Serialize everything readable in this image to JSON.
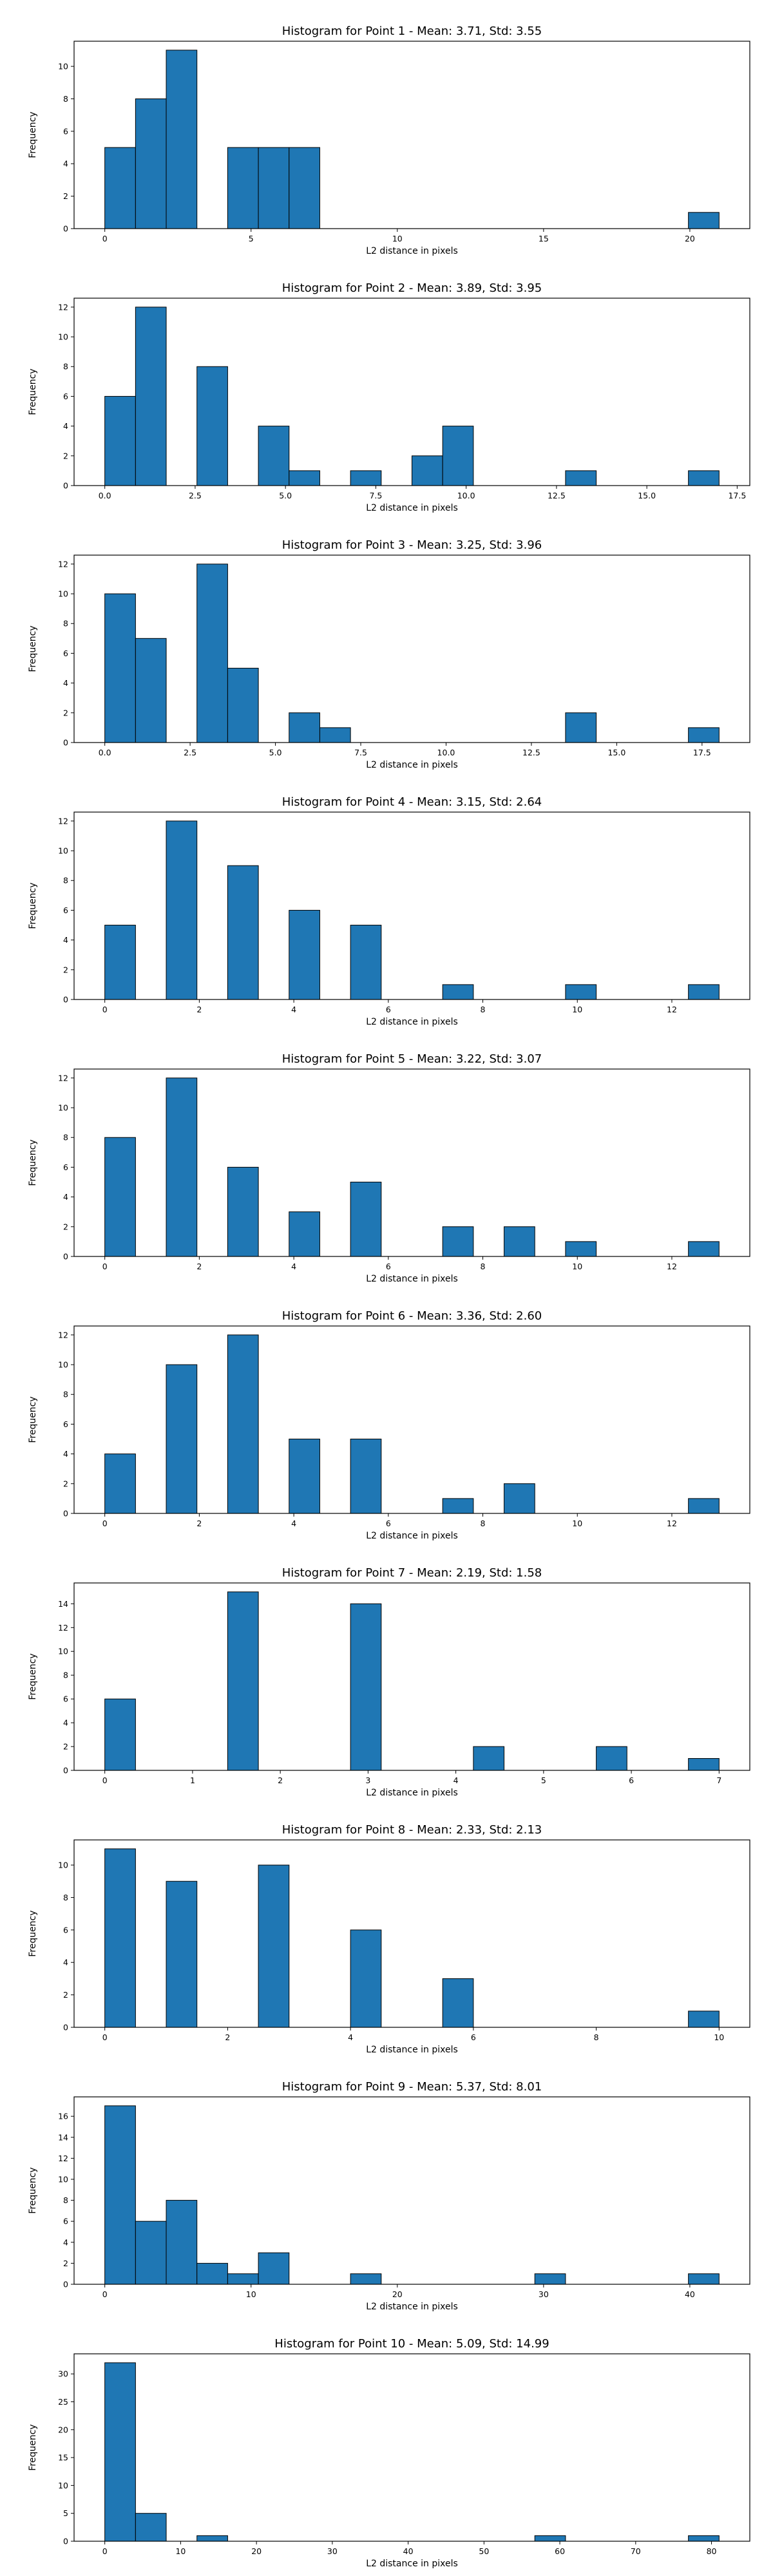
{
  "figure": {
    "bar_color": "#1f77b4",
    "edge_color": "#000000"
  },
  "chart_data": [
    {
      "type": "bar",
      "title": "Histogram for Point 1 - Mean: 3.71, Std: 3.55",
      "xlabel": "L2 distance in pixels",
      "ylabel": "Frequency",
      "xlim": [
        -1.05,
        22.05
      ],
      "ylim": [
        0,
        11.55
      ],
      "xticks": [
        {
          "value": 0,
          "label": "0"
        },
        {
          "value": 5,
          "label": "5"
        },
        {
          "value": 10,
          "label": "10"
        },
        {
          "value": 15,
          "label": "15"
        },
        {
          "value": 20,
          "label": "20"
        }
      ],
      "yticks": [
        {
          "value": 0,
          "label": "0"
        },
        {
          "value": 2,
          "label": "2"
        },
        {
          "value": 4,
          "label": "4"
        },
        {
          "value": 6,
          "label": "6"
        },
        {
          "value": 8,
          "label": "8"
        },
        {
          "value": 10,
          "label": "10"
        }
      ],
      "bins": [
        {
          "x0": 0.0,
          "x1": 1.05,
          "count": 5
        },
        {
          "x0": 1.05,
          "x1": 2.1,
          "count": 8
        },
        {
          "x0": 2.1,
          "x1": 3.15,
          "count": 11
        },
        {
          "x0": 4.2,
          "x1": 5.25,
          "count": 5
        },
        {
          "x0": 5.25,
          "x1": 6.3,
          "count": 5
        },
        {
          "x0": 6.3,
          "x1": 7.35,
          "count": 5
        },
        {
          "x0": 19.95,
          "x1": 21.0,
          "count": 1
        }
      ]
    },
    {
      "type": "bar",
      "title": "Histogram for Point 2 - Mean: 3.89, Std: 3.95",
      "xlabel": "L2 distance in pixels",
      "ylabel": "Frequency",
      "xlim": [
        -0.85,
        17.85
      ],
      "ylim": [
        0,
        12.6
      ],
      "xticks": [
        {
          "value": 0,
          "label": "0.0"
        },
        {
          "value": 2.5,
          "label": "2.5"
        },
        {
          "value": 5,
          "label": "5.0"
        },
        {
          "value": 7.5,
          "label": "7.5"
        },
        {
          "value": 10,
          "label": "10.0"
        },
        {
          "value": 12.5,
          "label": "12.5"
        },
        {
          "value": 15,
          "label": "15.0"
        },
        {
          "value": 17.5,
          "label": "17.5"
        }
      ],
      "yticks": [
        {
          "value": 0,
          "label": "0"
        },
        {
          "value": 2,
          "label": "2"
        },
        {
          "value": 4,
          "label": "4"
        },
        {
          "value": 6,
          "label": "6"
        },
        {
          "value": 8,
          "label": "8"
        },
        {
          "value": 10,
          "label": "10"
        },
        {
          "value": 12,
          "label": "12"
        }
      ],
      "bins": [
        {
          "x0": 0.0,
          "x1": 0.85,
          "count": 6
        },
        {
          "x0": 0.85,
          "x1": 1.7,
          "count": 12
        },
        {
          "x0": 2.55,
          "x1": 3.4,
          "count": 8
        },
        {
          "x0": 4.25,
          "x1": 5.1,
          "count": 4
        },
        {
          "x0": 5.1,
          "x1": 5.95,
          "count": 1
        },
        {
          "x0": 6.8,
          "x1": 7.65,
          "count": 1
        },
        {
          "x0": 8.5,
          "x1": 9.35,
          "count": 2
        },
        {
          "x0": 9.35,
          "x1": 10.2,
          "count": 4
        },
        {
          "x0": 12.75,
          "x1": 13.6,
          "count": 1
        },
        {
          "x0": 16.15,
          "x1": 17.0,
          "count": 1
        }
      ]
    },
    {
      "type": "bar",
      "title": "Histogram for Point 3 - Mean: 3.25, Std: 3.96",
      "xlabel": "L2 distance in pixels",
      "ylabel": "Frequency",
      "xlim": [
        -0.9,
        18.9
      ],
      "ylim": [
        0,
        12.6
      ],
      "xticks": [
        {
          "value": 0,
          "label": "0.0"
        },
        {
          "value": 2.5,
          "label": "2.5"
        },
        {
          "value": 5,
          "label": "5.0"
        },
        {
          "value": 7.5,
          "label": "7.5"
        },
        {
          "value": 10,
          "label": "10.0"
        },
        {
          "value": 12.5,
          "label": "12.5"
        },
        {
          "value": 15,
          "label": "15.0"
        },
        {
          "value": 17.5,
          "label": "17.5"
        }
      ],
      "yticks": [
        {
          "value": 0,
          "label": "0"
        },
        {
          "value": 2,
          "label": "2"
        },
        {
          "value": 4,
          "label": "4"
        },
        {
          "value": 6,
          "label": "6"
        },
        {
          "value": 8,
          "label": "8"
        },
        {
          "value": 10,
          "label": "10"
        },
        {
          "value": 12,
          "label": "12"
        }
      ],
      "bins": [
        {
          "x0": 0.0,
          "x1": 0.9,
          "count": 10
        },
        {
          "x0": 0.9,
          "x1": 1.8,
          "count": 7
        },
        {
          "x0": 2.7,
          "x1": 3.6,
          "count": 12
        },
        {
          "x0": 3.6,
          "x1": 4.5,
          "count": 5
        },
        {
          "x0": 5.4,
          "x1": 6.3,
          "count": 2
        },
        {
          "x0": 6.3,
          "x1": 7.2,
          "count": 1
        },
        {
          "x0": 13.5,
          "x1": 14.4,
          "count": 2
        },
        {
          "x0": 17.1,
          "x1": 18.0,
          "count": 1
        }
      ]
    },
    {
      "type": "bar",
      "title": "Histogram for Point 4 - Mean: 3.15, Std: 2.64",
      "xlabel": "L2 distance in pixels",
      "ylabel": "Frequency",
      "xlim": [
        -0.65,
        13.65
      ],
      "ylim": [
        0,
        12.6
      ],
      "xticks": [
        {
          "value": 0,
          "label": "0"
        },
        {
          "value": 2,
          "label": "2"
        },
        {
          "value": 4,
          "label": "4"
        },
        {
          "value": 6,
          "label": "6"
        },
        {
          "value": 8,
          "label": "8"
        },
        {
          "value": 10,
          "label": "10"
        },
        {
          "value": 12,
          "label": "12"
        }
      ],
      "yticks": [
        {
          "value": 0,
          "label": "0"
        },
        {
          "value": 2,
          "label": "2"
        },
        {
          "value": 4,
          "label": "4"
        },
        {
          "value": 6,
          "label": "6"
        },
        {
          "value": 8,
          "label": "8"
        },
        {
          "value": 10,
          "label": "10"
        },
        {
          "value": 12,
          "label": "12"
        }
      ],
      "bins": [
        {
          "x0": 0.0,
          "x1": 0.65,
          "count": 5
        },
        {
          "x0": 1.3,
          "x1": 1.95,
          "count": 12
        },
        {
          "x0": 2.6,
          "x1": 3.25,
          "count": 9
        },
        {
          "x0": 3.9,
          "x1": 4.55,
          "count": 6
        },
        {
          "x0": 5.2,
          "x1": 5.85,
          "count": 5
        },
        {
          "x0": 7.15,
          "x1": 7.8,
          "count": 1
        },
        {
          "x0": 9.75,
          "x1": 10.4,
          "count": 1
        },
        {
          "x0": 12.35,
          "x1": 13.0,
          "count": 1
        }
      ]
    },
    {
      "type": "bar",
      "title": "Histogram for Point 5 - Mean: 3.22, Std: 3.07",
      "xlabel": "L2 distance in pixels",
      "ylabel": "Frequency",
      "xlim": [
        -0.65,
        13.65
      ],
      "ylim": [
        0,
        12.6
      ],
      "xticks": [
        {
          "value": 0,
          "label": "0"
        },
        {
          "value": 2,
          "label": "2"
        },
        {
          "value": 4,
          "label": "4"
        },
        {
          "value": 6,
          "label": "6"
        },
        {
          "value": 8,
          "label": "8"
        },
        {
          "value": 10,
          "label": "10"
        },
        {
          "value": 12,
          "label": "12"
        }
      ],
      "yticks": [
        {
          "value": 0,
          "label": "0"
        },
        {
          "value": 2,
          "label": "2"
        },
        {
          "value": 4,
          "label": "4"
        },
        {
          "value": 6,
          "label": "6"
        },
        {
          "value": 8,
          "label": "8"
        },
        {
          "value": 10,
          "label": "10"
        },
        {
          "value": 12,
          "label": "12"
        }
      ],
      "bins": [
        {
          "x0": 0.0,
          "x1": 0.65,
          "count": 8
        },
        {
          "x0": 1.3,
          "x1": 1.95,
          "count": 12
        },
        {
          "x0": 2.6,
          "x1": 3.25,
          "count": 6
        },
        {
          "x0": 3.9,
          "x1": 4.55,
          "count": 3
        },
        {
          "x0": 5.2,
          "x1": 5.85,
          "count": 5
        },
        {
          "x0": 7.15,
          "x1": 7.8,
          "count": 2
        },
        {
          "x0": 8.45,
          "x1": 9.1,
          "count": 2
        },
        {
          "x0": 9.75,
          "x1": 10.4,
          "count": 1
        },
        {
          "x0": 12.35,
          "x1": 13.0,
          "count": 1
        }
      ]
    },
    {
      "type": "bar",
      "title": "Histogram for Point 6 - Mean: 3.36, Std: 2.60",
      "xlabel": "L2 distance in pixels",
      "ylabel": "Frequency",
      "xlim": [
        -0.65,
        13.65
      ],
      "ylim": [
        0,
        12.6
      ],
      "xticks": [
        {
          "value": 0,
          "label": "0"
        },
        {
          "value": 2,
          "label": "2"
        },
        {
          "value": 4,
          "label": "4"
        },
        {
          "value": 6,
          "label": "6"
        },
        {
          "value": 8,
          "label": "8"
        },
        {
          "value": 10,
          "label": "10"
        },
        {
          "value": 12,
          "label": "12"
        }
      ],
      "yticks": [
        {
          "value": 0,
          "label": "0"
        },
        {
          "value": 2,
          "label": "2"
        },
        {
          "value": 4,
          "label": "4"
        },
        {
          "value": 6,
          "label": "6"
        },
        {
          "value": 8,
          "label": "8"
        },
        {
          "value": 10,
          "label": "10"
        },
        {
          "value": 12,
          "label": "12"
        }
      ],
      "bins": [
        {
          "x0": 0.0,
          "x1": 0.65,
          "count": 4
        },
        {
          "x0": 1.3,
          "x1": 1.95,
          "count": 10
        },
        {
          "x0": 2.6,
          "x1": 3.25,
          "count": 12
        },
        {
          "x0": 3.9,
          "x1": 4.55,
          "count": 5
        },
        {
          "x0": 5.2,
          "x1": 5.85,
          "count": 5
        },
        {
          "x0": 7.15,
          "x1": 7.8,
          "count": 1
        },
        {
          "x0": 8.45,
          "x1": 9.1,
          "count": 2
        },
        {
          "x0": 12.35,
          "x1": 13.0,
          "count": 1
        }
      ]
    },
    {
      "type": "bar",
      "title": "Histogram for Point 7 - Mean: 2.19, Std: 1.58",
      "xlabel": "L2 distance in pixels",
      "ylabel": "Frequency",
      "xlim": [
        -0.35,
        7.35
      ],
      "ylim": [
        0,
        15.75
      ],
      "xticks": [
        {
          "value": 0,
          "label": "0"
        },
        {
          "value": 1,
          "label": "1"
        },
        {
          "value": 2,
          "label": "2"
        },
        {
          "value": 3,
          "label": "3"
        },
        {
          "value": 4,
          "label": "4"
        },
        {
          "value": 5,
          "label": "5"
        },
        {
          "value": 6,
          "label": "6"
        },
        {
          "value": 7,
          "label": "7"
        }
      ],
      "yticks": [
        {
          "value": 0,
          "label": "0"
        },
        {
          "value": 2,
          "label": "2"
        },
        {
          "value": 4,
          "label": "4"
        },
        {
          "value": 6,
          "label": "6"
        },
        {
          "value": 8,
          "label": "8"
        },
        {
          "value": 10,
          "label": "10"
        },
        {
          "value": 12,
          "label": "12"
        },
        {
          "value": 14,
          "label": "14"
        }
      ],
      "bins": [
        {
          "x0": 0.0,
          "x1": 0.35,
          "count": 6
        },
        {
          "x0": 1.4,
          "x1": 1.75,
          "count": 15
        },
        {
          "x0": 2.8,
          "x1": 3.15,
          "count": 14
        },
        {
          "x0": 4.2,
          "x1": 4.55,
          "count": 2
        },
        {
          "x0": 5.6,
          "x1": 5.95,
          "count": 2
        },
        {
          "x0": 6.65,
          "x1": 7.0,
          "count": 1
        }
      ]
    },
    {
      "type": "bar",
      "title": "Histogram for Point 8 - Mean: 2.33, Std: 2.13",
      "xlabel": "L2 distance in pixels",
      "ylabel": "Frequency",
      "xlim": [
        -0.5,
        10.5
      ],
      "ylim": [
        0,
        11.55
      ],
      "xticks": [
        {
          "value": 0,
          "label": "0"
        },
        {
          "value": 2,
          "label": "2"
        },
        {
          "value": 4,
          "label": "4"
        },
        {
          "value": 6,
          "label": "6"
        },
        {
          "value": 8,
          "label": "8"
        },
        {
          "value": 10,
          "label": "10"
        }
      ],
      "yticks": [
        {
          "value": 0,
          "label": "0"
        },
        {
          "value": 2,
          "label": "2"
        },
        {
          "value": 4,
          "label": "4"
        },
        {
          "value": 6,
          "label": "6"
        },
        {
          "value": 8,
          "label": "8"
        },
        {
          "value": 10,
          "label": "10"
        }
      ],
      "bins": [
        {
          "x0": 0.0,
          "x1": 0.5,
          "count": 11
        },
        {
          "x0": 1.0,
          "x1": 1.5,
          "count": 9
        },
        {
          "x0": 2.5,
          "x1": 3.0,
          "count": 10
        },
        {
          "x0": 4.0,
          "x1": 4.5,
          "count": 6
        },
        {
          "x0": 5.5,
          "x1": 6.0,
          "count": 3
        },
        {
          "x0": 9.5,
          "x1": 10.0,
          "count": 1
        }
      ]
    },
    {
      "type": "bar",
      "title": "Histogram for Point 9 - Mean: 5.37, Std: 8.01",
      "xlabel": "L2 distance in pixels",
      "ylabel": "Frequency",
      "xlim": [
        -2.1,
        44.1
      ],
      "ylim": [
        0,
        17.85
      ],
      "xticks": [
        {
          "value": 0,
          "label": "0"
        },
        {
          "value": 10,
          "label": "10"
        },
        {
          "value": 20,
          "label": "20"
        },
        {
          "value": 30,
          "label": "30"
        },
        {
          "value": 40,
          "label": "40"
        }
      ],
      "yticks": [
        {
          "value": 0,
          "label": "0"
        },
        {
          "value": 2,
          "label": "2"
        },
        {
          "value": 4,
          "label": "4"
        },
        {
          "value": 6,
          "label": "6"
        },
        {
          "value": 8,
          "label": "8"
        },
        {
          "value": 10,
          "label": "10"
        },
        {
          "value": 12,
          "label": "12"
        },
        {
          "value": 14,
          "label": "14"
        },
        {
          "value": 16,
          "label": "16"
        }
      ],
      "bins": [
        {
          "x0": 0.0,
          "x1": 2.1,
          "count": 17
        },
        {
          "x0": 2.1,
          "x1": 4.2,
          "count": 6
        },
        {
          "x0": 4.2,
          "x1": 6.3,
          "count": 8
        },
        {
          "x0": 6.3,
          "x1": 8.4,
          "count": 2
        },
        {
          "x0": 8.4,
          "x1": 10.5,
          "count": 1
        },
        {
          "x0": 10.5,
          "x1": 12.6,
          "count": 3
        },
        {
          "x0": 16.8,
          "x1": 18.9,
          "count": 1
        },
        {
          "x0": 29.4,
          "x1": 31.5,
          "count": 1
        },
        {
          "x0": 39.9,
          "x1": 42.0,
          "count": 1
        }
      ]
    },
    {
      "type": "bar",
      "title": "Histogram for Point 10 - Mean: 5.09, Std: 14.99",
      "xlabel": "L2 distance in pixels",
      "ylabel": "Frequency",
      "xlim": [
        -4.05,
        85.05
      ],
      "ylim": [
        0,
        33.6
      ],
      "xticks": [
        {
          "value": 0,
          "label": "0"
        },
        {
          "value": 10,
          "label": "10"
        },
        {
          "value": 20,
          "label": "20"
        },
        {
          "value": 30,
          "label": "30"
        },
        {
          "value": 40,
          "label": "40"
        },
        {
          "value": 50,
          "label": "50"
        },
        {
          "value": 60,
          "label": "60"
        },
        {
          "value": 70,
          "label": "70"
        },
        {
          "value": 80,
          "label": "80"
        }
      ],
      "yticks": [
        {
          "value": 0,
          "label": "0"
        },
        {
          "value": 5,
          "label": "5"
        },
        {
          "value": 10,
          "label": "10"
        },
        {
          "value": 15,
          "label": "15"
        },
        {
          "value": 20,
          "label": "20"
        },
        {
          "value": 25,
          "label": "25"
        },
        {
          "value": 30,
          "label": "30"
        }
      ],
      "bins": [
        {
          "x0": 0.0,
          "x1": 4.05,
          "count": 32
        },
        {
          "x0": 4.05,
          "x1": 8.1,
          "count": 5
        },
        {
          "x0": 12.15,
          "x1": 16.2,
          "count": 1
        },
        {
          "x0": 56.7,
          "x1": 60.75,
          "count": 1
        },
        {
          "x0": 76.95,
          "x1": 81.0,
          "count": 1
        }
      ]
    }
  ]
}
